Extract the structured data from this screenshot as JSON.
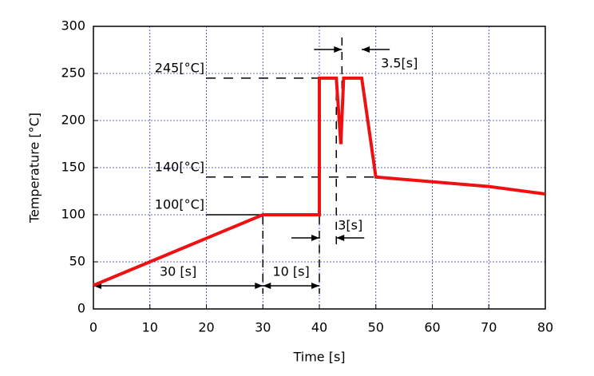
{
  "chart_data": {
    "type": "line",
    "x_label": "Time [s]",
    "y_label": "Temperature [°C]",
    "x": [
      0,
      30,
      40,
      40,
      43,
      43.8,
      44.3,
      47.5,
      50,
      70,
      80
    ],
    "series": [
      {
        "color": "#ee1111",
        "values": [
          25,
          100,
          100,
          245,
          245,
          175,
          245,
          245,
          140,
          130,
          122
        ]
      }
    ],
    "xlim": [
      0,
      80
    ],
    "xticks": [
      0,
      10,
      20,
      30,
      40,
      50,
      60,
      70,
      80
    ],
    "ylim": [
      0,
      300
    ],
    "yticks": [
      0,
      50,
      100,
      150,
      200,
      250,
      300
    ],
    "grid": true,
    "level_annotations": [
      {
        "text": "245[°C]",
        "y": 245,
        "x_end": 40
      },
      {
        "text": "140[°C]",
        "y": 140,
        "x_end": 50
      },
      {
        "text": "100[°C]",
        "y": 100,
        "x_end": 30
      }
    ],
    "span_annotations": [
      {
        "text": "30 [s]",
        "x": [
          0,
          30
        ]
      },
      {
        "text": "10 [s]",
        "x": [
          30,
          40
        ]
      },
      {
        "text": "3[s]",
        "x": [
          40,
          43
        ]
      },
      {
        "text": "3.5[s]",
        "x": [
          44,
          47.5
        ]
      }
    ]
  }
}
